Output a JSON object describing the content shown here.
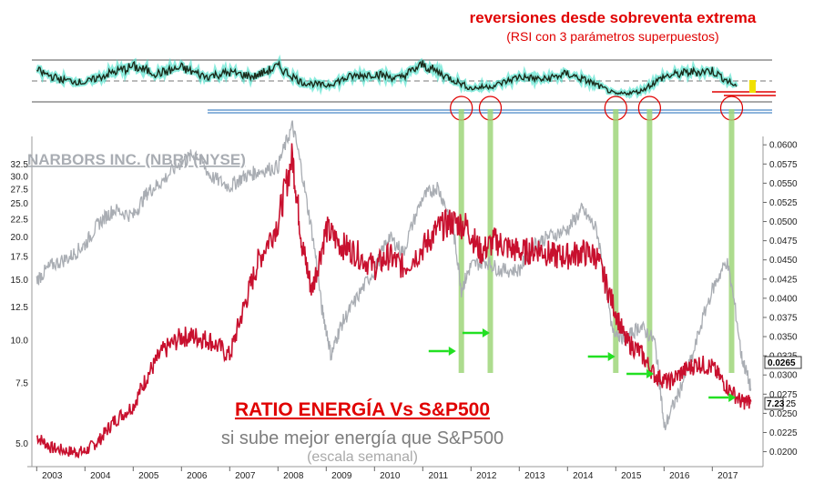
{
  "chart_data": [
    {
      "type": "line",
      "panel": "rsi",
      "title": "reversiones desde sobreventa extrema",
      "subtitle": "(RSI con 3 parámetros superpuestos)",
      "x": [
        2003.0,
        2003.5,
        2004.0,
        2004.5,
        2005.0,
        2005.5,
        2006.0,
        2006.5,
        2007.0,
        2007.5,
        2008.0,
        2008.5,
        2009.0,
        2009.5,
        2010.0,
        2010.5,
        2011.0,
        2011.5,
        2012.0,
        2012.5,
        2013.0,
        2013.5,
        2014.0,
        2014.5,
        2015.0,
        2015.5,
        2016.0,
        2016.5,
        2017.0,
        2017.5
      ],
      "series": [
        {
          "values": [
            65,
            50,
            45,
            60,
            72,
            60,
            70,
            55,
            62,
            55,
            72,
            45,
            40,
            55,
            60,
            52,
            75,
            55,
            35,
            40,
            55,
            50,
            60,
            45,
            25,
            30,
            55,
            62,
            65,
            38
          ]
        }
      ],
      "ylim": [
        0,
        100
      ],
      "reference_levels": [
        70,
        50,
        30
      ],
      "circled_signals": [
        "2011.8",
        "2012.4",
        "2015.0",
        "2015.7",
        "2017.4"
      ]
    },
    {
      "type": "line",
      "panel": "price",
      "title": "NARBORS INC. (NBR) (NYSE)",
      "annotation_title": "RATIO ENERGÍA Vs S&P500",
      "annotation_line1": "si sube mejor energía que S&P500",
      "annotation_line2": "(escala semanal)",
      "x_ticks": [
        "2003",
        "2004",
        "2005",
        "2006",
        "2007",
        "2008",
        "2009",
        "2010",
        "2011",
        "2012",
        "2013",
        "2014",
        "2015",
        "2016",
        "2017"
      ],
      "yleft_ticks": [
        "32.5",
        "30.0",
        "27.5",
        "25.0",
        "22.5",
        "20.0",
        "17.5",
        "15.0",
        "12.5",
        "10.0",
        "7.5",
        "5.0"
      ],
      "yright_ticks": [
        "0.0600",
        "0.0575",
        "0.0550",
        "0.0525",
        "0.0500",
        "0.0475",
        "0.0450",
        "0.0425",
        "0.0400",
        "0.0375",
        "0.0350",
        "0.0325",
        "0.0300",
        "0.0275",
        "0.0250",
        "0.0225",
        "0.0200"
      ],
      "last_labels": {
        "ratio": "0.0265",
        "price": "7.23",
        "price_tail": "25"
      },
      "yleft_scale": "log",
      "yleft_range": [
        4.5,
        38
      ],
      "yright_range": [
        0.019,
        0.0605
      ],
      "x_range": [
        2002.9,
        2017.9
      ],
      "series": [
        {
          "role": "ratio",
          "color": "#c8102e",
          "x": [
            2003.0,
            2003.3,
            2003.7,
            2004.0,
            2004.3,
            2004.6,
            2005.0,
            2005.3,
            2005.6,
            2006.0,
            2006.3,
            2006.6,
            2007.0,
            2007.3,
            2007.6,
            2008.0,
            2008.3,
            2008.5,
            2008.7,
            2009.0,
            2009.3,
            2009.6,
            2010.0,
            2010.3,
            2010.6,
            2011.0,
            2011.3,
            2011.6,
            2011.9,
            2012.2,
            2012.5,
            2012.8,
            2013.1,
            2013.4,
            2013.7,
            2014.0,
            2014.3,
            2014.6,
            2014.9,
            2015.2,
            2015.5,
            2015.8,
            2016.1,
            2016.4,
            2016.7,
            2017.0,
            2017.3,
            2017.6,
            2017.8
          ],
          "values": [
            0.022,
            0.0205,
            0.02,
            0.02,
            0.0215,
            0.024,
            0.026,
            0.03,
            0.033,
            0.035,
            0.035,
            0.0345,
            0.0325,
            0.039,
            0.045,
            0.05,
            0.0585,
            0.047,
            0.041,
            0.049,
            0.047,
            0.046,
            0.044,
            0.0455,
            0.044,
            0.0465,
            0.049,
            0.05,
            0.0495,
            0.046,
            0.0475,
            0.0465,
            0.046,
            0.0465,
            0.0455,
            0.0455,
            0.046,
            0.0455,
            0.04,
            0.0345,
            0.033,
            0.03,
            0.029,
            0.0305,
            0.0315,
            0.031,
            0.0285,
            0.0265,
            0.0265
          ]
        },
        {
          "role": "price",
          "color": "#a9adb3",
          "x": [
            2003.0,
            2003.3,
            2003.7,
            2004.0,
            2004.3,
            2004.6,
            2005.0,
            2005.3,
            2005.6,
            2006.0,
            2006.3,
            2006.6,
            2007.0,
            2007.3,
            2007.6,
            2008.0,
            2008.3,
            2008.6,
            2008.9,
            2009.1,
            2009.3,
            2009.6,
            2010.0,
            2010.3,
            2010.6,
            2011.0,
            2011.3,
            2011.6,
            2011.8,
            2012.0,
            2012.3,
            2012.6,
            2013.0,
            2013.3,
            2013.6,
            2014.0,
            2014.3,
            2014.6,
            2014.9,
            2015.2,
            2015.5,
            2015.8,
            2016.0,
            2016.3,
            2016.6,
            2017.0,
            2017.3,
            2017.6,
            2017.8
          ],
          "values": [
            15.0,
            16.5,
            17.5,
            19.0,
            22.0,
            24.0,
            23.0,
            27.0,
            29.0,
            33.0,
            35.0,
            30.0,
            28.0,
            30.0,
            31.0,
            32.0,
            42.0,
            25.0,
            12.5,
            9.0,
            11.0,
            13.0,
            16.0,
            20.0,
            18.0,
            26.0,
            28.0,
            22.0,
            14.0,
            16.5,
            17.0,
            16.0,
            16.0,
            19.0,
            20.0,
            21.0,
            24.0,
            21.0,
            11.0,
            10.0,
            11.0,
            10.0,
            5.5,
            7.0,
            9.0,
            14.0,
            17.0,
            9.0,
            7.23
          ]
        }
      ],
      "vertical_markers": [
        2011.8,
        2012.4,
        2015.0,
        2015.7,
        2017.4
      ],
      "green_arrows": [
        "2011.5",
        "2012.2",
        "2014.8",
        "2015.6",
        "2017.3"
      ]
    }
  ]
}
